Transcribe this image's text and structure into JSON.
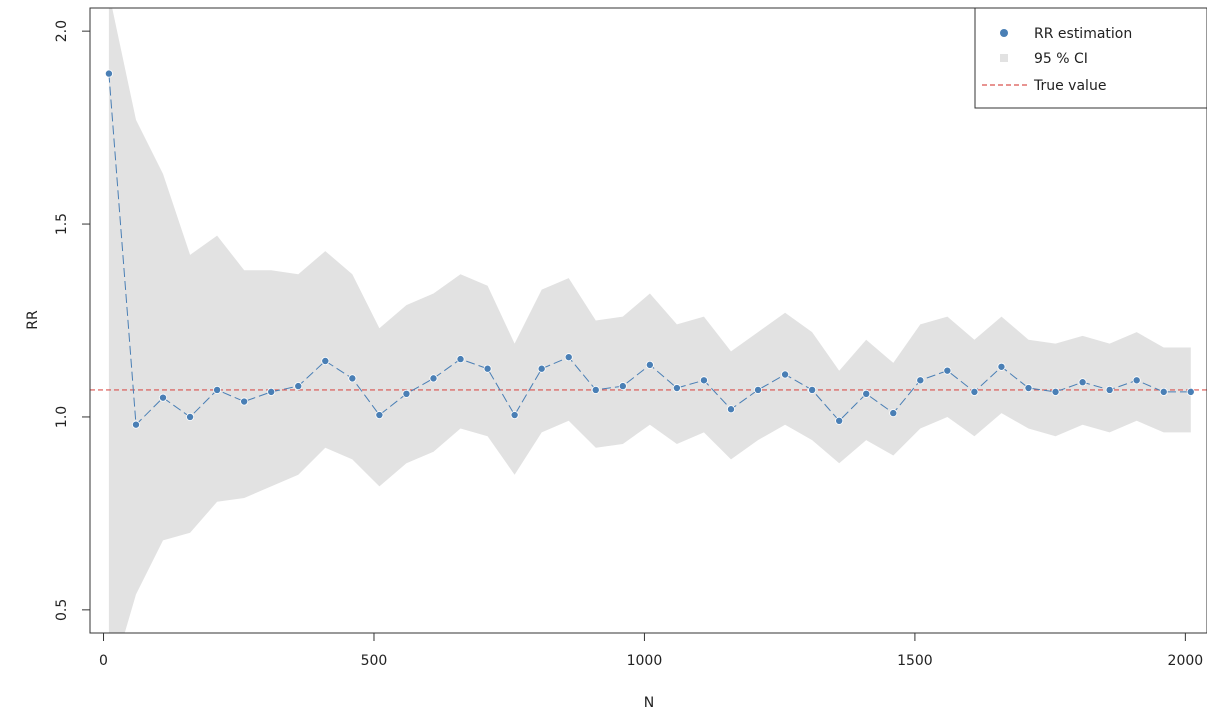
{
  "chart_data": {
    "type": "line",
    "title": "",
    "xlabel": "N",
    "ylabel": "RR",
    "xlim": [
      -25,
      2040
    ],
    "ylim": [
      0.44,
      2.06
    ],
    "xticks": [
      0,
      500,
      1000,
      1500,
      2000
    ],
    "yticks": [
      0.5,
      1.0,
      1.5,
      2.0
    ],
    "xtick_labels": [
      "0",
      "500",
      "1000",
      "1500",
      "2000"
    ],
    "ytick_labels": [
      "0.5",
      "1.0",
      "1.5",
      "2.0"
    ],
    "true_value": 1.07,
    "grid": false,
    "legend": {
      "position": "top-right",
      "entries": [
        {
          "label": "RR estimation",
          "kind": "point",
          "color": "#4a7fb5"
        },
        {
          "label": "95 % CI",
          "kind": "square",
          "color": "#e2e2e2"
        },
        {
          "label": "True value",
          "kind": "dashed-line",
          "color": "#d9534f"
        }
      ]
    },
    "colors": {
      "estimate": "#4a7fb5",
      "ci_fill": "#e2e2e2",
      "true_line": "#d9534f"
    },
    "series": [
      {
        "name": "RR estimation",
        "x": [
          10,
          60,
          110,
          160,
          210,
          260,
          310,
          360,
          410,
          460,
          510,
          560,
          610,
          660,
          710,
          760,
          810,
          860,
          910,
          960,
          1010,
          1060,
          1110,
          1160,
          1210,
          1260,
          1310,
          1360,
          1410,
          1460,
          1510,
          1560,
          1610,
          1660,
          1710,
          1760,
          1810,
          1860,
          1910,
          1960,
          2010
        ],
        "y": [
          1.89,
          0.98,
          1.05,
          1.0,
          1.07,
          1.04,
          1.065,
          1.08,
          1.145,
          1.1,
          1.005,
          1.06,
          1.1,
          1.15,
          1.125,
          1.005,
          1.125,
          1.155,
          1.07,
          1.08,
          1.135,
          1.075,
          1.095,
          1.02,
          1.07,
          1.11,
          1.07,
          0.99,
          1.06,
          1.01,
          1.095,
          1.12,
          1.065,
          1.13,
          1.075,
          1.065,
          1.09,
          1.07,
          1.095,
          1.065,
          1.065
        ]
      }
    ],
    "ci": {
      "name": "95 % CI",
      "x": [
        10,
        60,
        110,
        160,
        210,
        260,
        310,
        360,
        410,
        460,
        510,
        560,
        610,
        660,
        710,
        760,
        810,
        860,
        910,
        960,
        1010,
        1060,
        1110,
        1160,
        1210,
        1260,
        1310,
        1360,
        1410,
        1460,
        1510,
        1560,
        1610,
        1660,
        1710,
        1760,
        1810,
        1860,
        1910,
        1960,
        2010
      ],
      "lower": [
        0.3,
        0.54,
        0.68,
        0.7,
        0.78,
        0.79,
        0.82,
        0.85,
        0.92,
        0.89,
        0.82,
        0.88,
        0.91,
        0.97,
        0.95,
        0.85,
        0.96,
        0.99,
        0.92,
        0.93,
        0.98,
        0.93,
        0.96,
        0.89,
        0.94,
        0.98,
        0.94,
        0.88,
        0.94,
        0.9,
        0.97,
        1.0,
        0.95,
        1.01,
        0.97,
        0.95,
        0.98,
        0.96,
        0.99,
        0.96,
        0.96
      ],
      "upper": [
        2.1,
        1.77,
        1.63,
        1.42,
        1.47,
        1.38,
        1.38,
        1.37,
        1.43,
        1.37,
        1.23,
        1.29,
        1.32,
        1.37,
        1.34,
        1.19,
        1.33,
        1.36,
        1.25,
        1.26,
        1.32,
        1.24,
        1.26,
        1.17,
        1.22,
        1.27,
        1.22,
        1.12,
        1.2,
        1.14,
        1.24,
        1.26,
        1.2,
        1.26,
        1.2,
        1.19,
        1.21,
        1.19,
        1.22,
        1.18,
        1.18
      ]
    }
  }
}
